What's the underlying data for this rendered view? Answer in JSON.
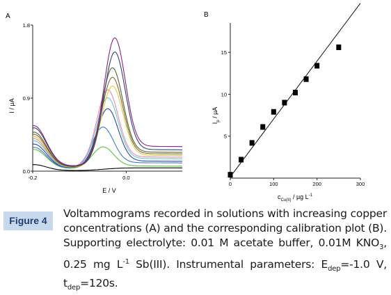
{
  "figure": {
    "badge": "Figure 4",
    "caption": {
      "p1": "Voltammograms recorded in solutions with increasing copper concentrations (A) and the corresponding calibration plot (B). Supporting electrolyte: 0.01 M acetate buffer, 0.01M KNO",
      "s1": "3",
      "p2": ", 0.25 mg L",
      "u1": "-1",
      "p3": " Sb(III). Instrumental parameters: E",
      "s2": "dep",
      "p4": "=-1.0 V, t",
      "s3": "dep",
      "p5": "=120s."
    }
  },
  "chart_data": [
    {
      "panel": "A",
      "type": "line",
      "xlabel": "E / V",
      "ylabel": "I / μA",
      "xlim": [
        -0.2,
        0.12
      ],
      "ylim": [
        0.0,
        1.8
      ],
      "x_tick_labels": [
        "-0.2",
        "0.0"
      ],
      "y_tick_labels": [
        "0.0",
        "0.9",
        "1.8"
      ],
      "series": [
        {
          "color": "#000000",
          "peak_x": -0.02,
          "peak_y": 0.04,
          "base_y": 0.06,
          "tail_y": 0.04
        },
        {
          "color": "#66bb44",
          "peak_x": -0.05,
          "peak_y": 0.3,
          "base_y": 0.2,
          "tail_y": 0.06
        },
        {
          "color": "#4477cc",
          "peak_x": -0.05,
          "peak_y": 0.55,
          "base_y": 0.22,
          "tail_y": 0.1
        },
        {
          "color": "#3344aa",
          "peak_x": -0.04,
          "peak_y": 0.78,
          "base_y": 0.25,
          "tail_y": 0.12
        },
        {
          "color": "#66cccc",
          "peak_x": -0.04,
          "peak_y": 0.92,
          "base_y": 0.28,
          "tail_y": 0.15
        },
        {
          "color": "#ee88aa",
          "peak_x": -0.04,
          "peak_y": 1.02,
          "base_y": 0.3,
          "tail_y": 0.17
        },
        {
          "color": "#ddcc44",
          "peak_x": -0.03,
          "peak_y": 1.07,
          "base_y": 0.32,
          "tail_y": 0.19
        },
        {
          "color": "#886633",
          "peak_x": -0.03,
          "peak_y": 1.18,
          "base_y": 0.34,
          "tail_y": 0.21
        },
        {
          "color": "#556633",
          "peak_x": -0.03,
          "peak_y": 1.3,
          "base_y": 0.36,
          "tail_y": 0.23
        },
        {
          "color": "#334466",
          "peak_x": -0.025,
          "peak_y": 1.5,
          "base_y": 0.4,
          "tail_y": 0.26
        },
        {
          "color": "#882288",
          "peak_x": -0.025,
          "peak_y": 1.68,
          "base_y": 0.42,
          "tail_y": 0.3
        }
      ]
    },
    {
      "panel": "B",
      "type": "scatter",
      "xlabel": "c",
      "xlabel_sub": "Cu(II)",
      "xlabel_rest": " / µg L",
      "xlabel_sup": "-1",
      "ylabel": "I",
      "ylabel_sub": "p",
      "ylabel_rest": " / µA",
      "xlim": [
        0,
        300
      ],
      "ylim": [
        0,
        18.5
      ],
      "x_tick_labels": [
        "0",
        "100",
        "200",
        "300"
      ],
      "y_tick_labels": [
        "5",
        "10",
        "15"
      ],
      "x": [
        0,
        25,
        50,
        75,
        100,
        125,
        150,
        175,
        200,
        250
      ],
      "y": [
        0.4,
        2.2,
        4.2,
        6.1,
        7.9,
        9.0,
        10.2,
        11.8,
        13.4,
        15.6
      ],
      "fit": {
        "slope": 0.069,
        "intercept": 0.15,
        "x_range": [
          0,
          300
        ]
      }
    }
  ]
}
